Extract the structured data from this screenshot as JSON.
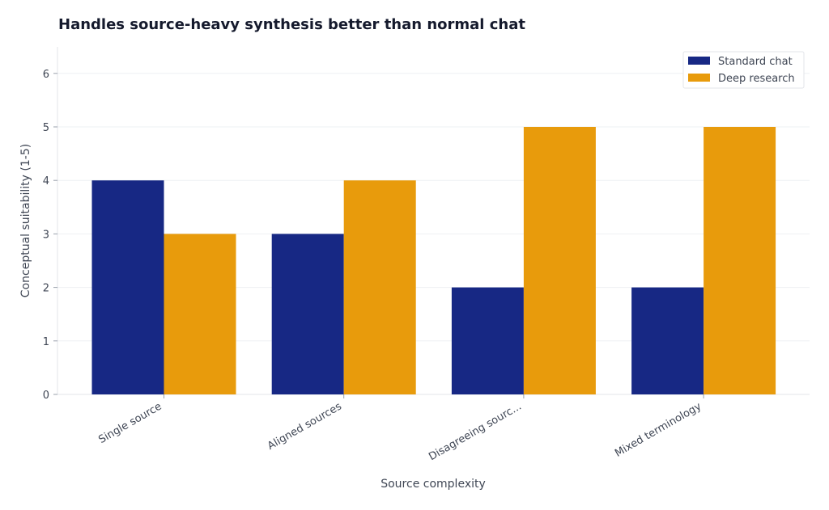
{
  "chart_data": {
    "type": "bar",
    "title": "Handles source-heavy synthesis better than normal chat",
    "xlabel": "Source complexity",
    "ylabel": "Conceptual suitability (1-5)",
    "categories": [
      "Single source",
      "Aligned sources",
      "Disagreeing sourc...",
      "Mixed terminology"
    ],
    "series": [
      {
        "name": "Standard chat",
        "color": "#172884",
        "values": [
          4,
          3,
          2,
          2
        ]
      },
      {
        "name": "Deep research",
        "color": "#e89b0c",
        "values": [
          3,
          4,
          5,
          5
        ]
      }
    ],
    "ylim": [
      0,
      6.5
    ],
    "yticks": [
      0,
      1,
      2,
      3,
      4,
      5,
      6
    ],
    "grid": true,
    "legend_position": "top-right"
  }
}
